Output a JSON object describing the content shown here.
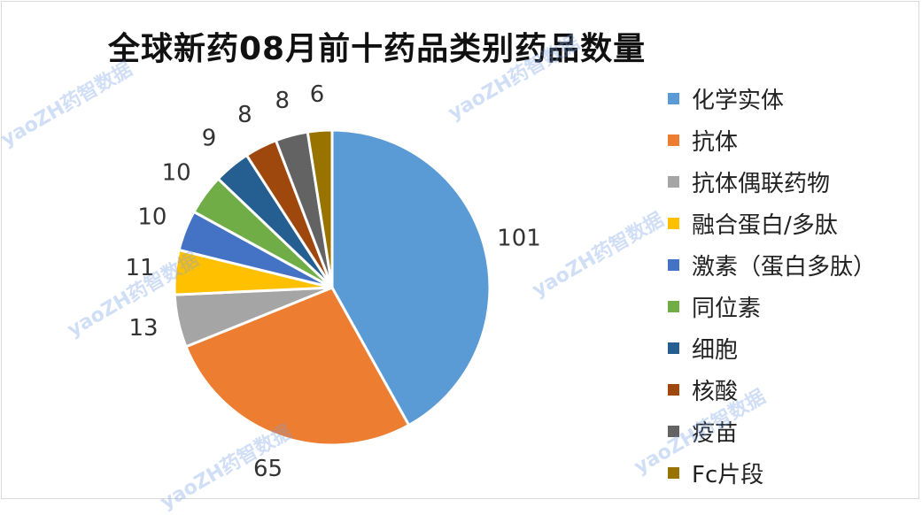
{
  "chart_data": {
    "type": "pie",
    "title": "全球新药08月前十药品类别药品数量",
    "categories": [
      "化学实体",
      "抗体",
      "抗体偶联药物",
      "融合蛋白/多肽",
      "激素（蛋白多肽）",
      "同位素",
      "细胞",
      "核酸",
      "疫苗",
      "Fc片段"
    ],
    "values": [
      101,
      65,
      13,
      11,
      10,
      10,
      9,
      8,
      8,
      6
    ],
    "colors": [
      "#5B9BD5",
      "#ED7D31",
      "#A5A5A5",
      "#FFC000",
      "#4472C4",
      "#70AD47",
      "#255E91",
      "#9E480E",
      "#636363",
      "#997300"
    ],
    "legend_position": "right"
  },
  "watermark_text": "yaoZH药智数据"
}
